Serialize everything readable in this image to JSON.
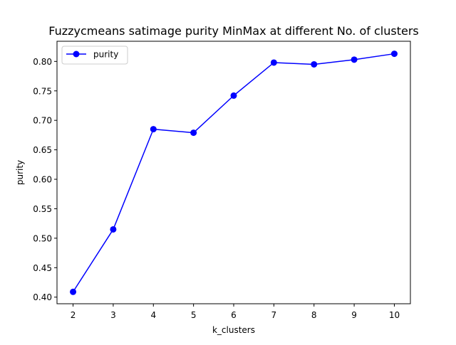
{
  "chart_data": {
    "type": "line",
    "title": "Fuzzycmeans satimage purity MinMax at different No. of clusters",
    "xlabel": "k_clusters",
    "ylabel": "purity",
    "x": [
      2,
      3,
      4,
      5,
      6,
      7,
      8,
      9,
      10
    ],
    "series": [
      {
        "name": "purity",
        "color": "#0000ff",
        "marker": "circle",
        "values": [
          0.409,
          0.515,
          0.685,
          0.679,
          0.742,
          0.798,
          0.795,
          0.803,
          0.813
        ]
      }
    ],
    "xlim": [
      1.6,
      10.4
    ],
    "ylim": [
      0.3888,
      0.8342
    ],
    "xticks": [
      "2",
      "3",
      "4",
      "5",
      "6",
      "7",
      "8",
      "9",
      "10"
    ],
    "yticks": [
      "0.40",
      "0.45",
      "0.50",
      "0.55",
      "0.60",
      "0.65",
      "0.70",
      "0.75",
      "0.80"
    ],
    "grid": false,
    "legend_position": "top-left"
  }
}
